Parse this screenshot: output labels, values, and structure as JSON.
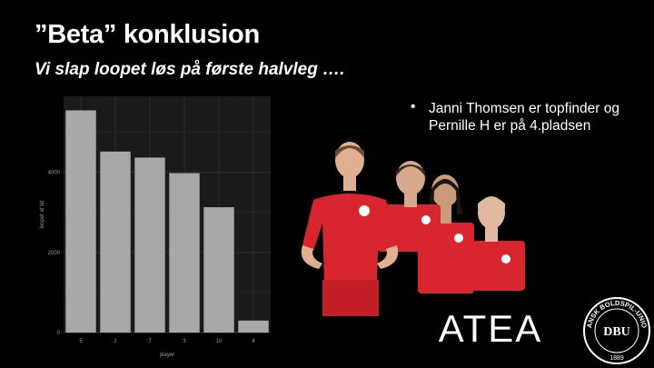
{
  "slide": {
    "title": "”Beta” konklusion",
    "subtitle": "Vi slap loopet løs på første halvleg ….",
    "bullets": [
      {
        "line1": "Janni Thomsen er topfinder og",
        "line2": "Pernille H er på 4.pladsen"
      }
    ]
  },
  "chart_data": {
    "type": "bar",
    "categories": [
      "5",
      "2",
      "7",
      "3",
      "10",
      "4"
    ],
    "values": [
      5550,
      4520,
      4370,
      3980,
      3130,
      300
    ],
    "ylabel": "loopet af tid",
    "xlabel": "player",
    "yticks": [
      0,
      2000,
      4000
    ],
    "ylim": [
      0,
      5900
    ],
    "grid": true,
    "bar_color": "#a8a8a8",
    "panel_color": "#1a1a1a",
    "grid_color": "#2c2c2c"
  },
  "logos": {
    "atea": "ATEA",
    "seal_top": "DANSK BOLDSPIL-UNION",
    "seal_year": "1889",
    "seal_center": "DBU"
  },
  "colors": {
    "background": "#000000",
    "jersey_red": "#d9262e",
    "text": "#ffffff"
  }
}
